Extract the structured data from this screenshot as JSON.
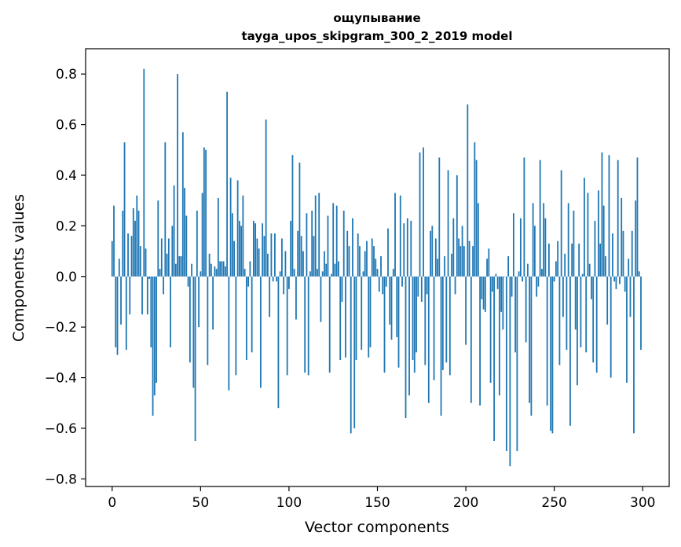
{
  "chart_data": {
    "type": "bar",
    "title": "ощупывание",
    "subtitle": "tayga_upos_skipgram_300_2_2019 model",
    "xlabel": "Vector components",
    "ylabel": "Components values",
    "xlim": [
      -15,
      315
    ],
    "ylim": [
      -0.83,
      0.9
    ],
    "xticks": [
      0,
      50,
      100,
      150,
      200,
      250,
      300
    ],
    "yticks": [
      -0.8,
      -0.6,
      -0.4,
      -0.2,
      0.0,
      0.2,
      0.4,
      0.6,
      0.8
    ],
    "ytick_labels": [
      "−0.8",
      "−0.6",
      "−0.4",
      "−0.2",
      "0.0",
      "0.2",
      "0.4",
      "0.6",
      "0.8"
    ],
    "bar_color": "#1f77b4",
    "values": [
      0.14,
      0.28,
      -0.28,
      -0.31,
      0.07,
      -0.19,
      0.26,
      0.53,
      -0.29,
      0.17,
      -0.15,
      0.16,
      0.27,
      0.22,
      0.32,
      0.26,
      0.12,
      -0.15,
      0.82,
      0.11,
      -0.15,
      -0.01,
      -0.28,
      -0.55,
      -0.47,
      -0.42,
      0.3,
      0.03,
      0.15,
      -0.07,
      0.53,
      0.09,
      0.15,
      -0.28,
      0.2,
      0.36,
      0.05,
      0.8,
      0.08,
      0.08,
      0.57,
      0.35,
      0.24,
      -0.04,
      -0.34,
      0.05,
      -0.44,
      -0.65,
      0.26,
      -0.2,
      0.02,
      0.33,
      0.51,
      0.5,
      -0.35,
      0.09,
      0.05,
      -0.21,
      0.04,
      0.03,
      0.31,
      0.06,
      0.06,
      0.06,
      0.04,
      0.73,
      -0.45,
      0.39,
      0.25,
      0.14,
      -0.39,
      0.38,
      0.22,
      0.2,
      0.32,
      0.03,
      -0.33,
      -0.04,
      0.06,
      -0.3,
      0.22,
      0.21,
      0.15,
      0.11,
      -0.44,
      0.21,
      0.16,
      0.62,
      0.09,
      -0.16,
      0.17,
      -0.02,
      0.17,
      -0.02,
      -0.52,
      0.02,
      0.15,
      -0.07,
      0.1,
      -0.39,
      -0.05,
      0.22,
      0.48,
      0.03,
      -0.17,
      0.18,
      0.45,
      0.16,
      0.1,
      -0.38,
      0.25,
      -0.39,
      0.02,
      0.26,
      0.16,
      0.32,
      0.03,
      0.33,
      -0.18,
      0.02,
      0.1,
      0.05,
      0.24,
      -0.38,
      0.01,
      0.29,
      0.05,
      0.28,
      0.06,
      -0.33,
      -0.1,
      0.26,
      -0.32,
      0.18,
      0.12,
      -0.62,
      0.23,
      -0.6,
      -0.33,
      0.17,
      0.12,
      -0.29,
      0.02,
      0.1,
      0.14,
      -0.32,
      -0.28,
      0.15,
      0.12,
      0.07,
      0.03,
      -0.06,
      0.08,
      -0.07,
      -0.38,
      -0.04,
      0.19,
      -0.19,
      -0.25,
      0.03,
      0.33,
      -0.24,
      -0.36,
      0.32,
      -0.04,
      0.21,
      -0.56,
      0.23,
      -0.47,
      0.22,
      -0.33,
      -0.38,
      -0.3,
      -0.08,
      0.49,
      -0.1,
      0.51,
      -0.35,
      -0.07,
      -0.5,
      0.18,
      0.2,
      -0.41,
      0.15,
      0.07,
      0.47,
      -0.55,
      -0.37,
      0.08,
      -0.34,
      0.42,
      -0.39,
      0.09,
      0.23,
      -0.07,
      0.4,
      0.15,
      0.12,
      0.2,
      0.12,
      -0.27,
      0.68,
      0.14,
      -0.5,
      0.12,
      0.53,
      0.46,
      0.29,
      -0.51,
      -0.09,
      -0.13,
      -0.14,
      0.07,
      0.11,
      -0.42,
      -0.06,
      -0.65,
      0.01,
      -0.05,
      -0.47,
      -0.14,
      -0.21,
      0.0,
      -0.69,
      0.08,
      -0.75,
      -0.08,
      0.25,
      -0.3,
      -0.69,
      0.02,
      0.23,
      -0.02,
      0.47,
      -0.26,
      0.05,
      -0.5,
      -0.55,
      0.29,
      0.2,
      -0.08,
      -0.04,
      0.46,
      0.03,
      0.29,
      0.23,
      -0.51,
      0.13,
      -0.61,
      -0.62,
      -0.02,
      0.06,
      0.14,
      -0.35,
      0.42,
      -0.16,
      0.09,
      -0.29,
      0.29,
      -0.59,
      0.13,
      0.26,
      -0.21,
      -0.43,
      0.13,
      -0.28,
      0.01,
      0.39,
      -0.3,
      0.33,
      0.05,
      -0.09,
      -0.34,
      0.22,
      -0.38,
      0.34,
      0.13,
      0.49,
      0.28,
      0.08,
      -0.19,
      0.48,
      -0.4,
      0.17,
      -0.02,
      -0.05,
      0.46,
      -0.03,
      0.31,
      0.18,
      -0.06,
      -0.42,
      0.07,
      -0.16,
      0.18,
      -0.62,
      0.3,
      0.47,
      0.02,
      -0.29
    ]
  }
}
